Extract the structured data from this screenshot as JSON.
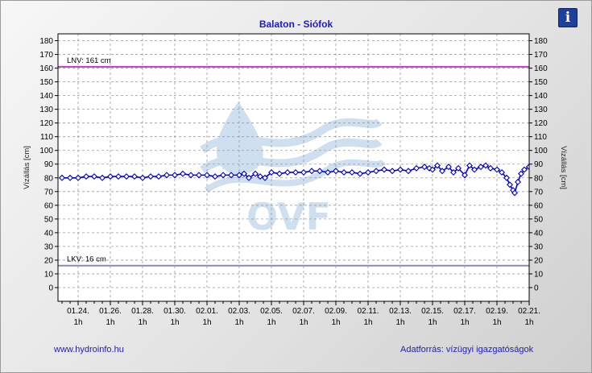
{
  "title": "Balaton - Siófok",
  "info_icon": "info-icon",
  "info_glyph": "i",
  "footer": {
    "left": "www.hydroinfo.hu",
    "right": "Adatforrás: vízügyi igazgatóságok"
  },
  "watermark": {
    "text": "OVF",
    "color": "#c9dcef"
  },
  "chart_data": {
    "type": "line",
    "ylabel_left": "Vízállás [cm]",
    "ylabel_right": "Vízállás [cm]",
    "ylim": [
      -10,
      185
    ],
    "yticks": [
      0,
      10,
      20,
      30,
      40,
      50,
      60,
      70,
      80,
      90,
      100,
      110,
      120,
      130,
      140,
      150,
      160,
      170,
      180
    ],
    "xlim": [
      0,
      29
    ],
    "xticks": [
      {
        "x": 1,
        "date": "01.24.",
        "hour": "1h"
      },
      {
        "x": 3,
        "date": "01.26.",
        "hour": "1h"
      },
      {
        "x": 5,
        "date": "01.28.",
        "hour": "1h"
      },
      {
        "x": 7,
        "date": "01.30.",
        "hour": "1h"
      },
      {
        "x": 9,
        "date": "02.01.",
        "hour": "1h"
      },
      {
        "x": 11,
        "date": "02.03.",
        "hour": "1h"
      },
      {
        "x": 13,
        "date": "02.05.",
        "hour": "1h"
      },
      {
        "x": 15,
        "date": "02.07.",
        "hour": "1h"
      },
      {
        "x": 17,
        "date": "02.09.",
        "hour": "1h"
      },
      {
        "x": 19,
        "date": "02.11.",
        "hour": "1h"
      },
      {
        "x": 21,
        "date": "02.13.",
        "hour": "1h"
      },
      {
        "x": 23,
        "date": "02.15.",
        "hour": "1h"
      },
      {
        "x": 25,
        "date": "02.17.",
        "hour": "1h"
      },
      {
        "x": 27,
        "date": "02.19.",
        "hour": "1h"
      },
      {
        "x": 29,
        "date": "02.21.",
        "hour": "1h"
      }
    ],
    "grid": true,
    "reference_lines": [
      {
        "label": "LNV: 161 cm",
        "value": 161,
        "color": "#c040c0"
      },
      {
        "label": "LKV: 16 cm",
        "value": 16,
        "color": "#8a8ab8"
      }
    ],
    "series": [
      {
        "color": "#0000c8",
        "marker": "diamond",
        "points": [
          [
            0,
            80
          ],
          [
            0.5,
            80
          ],
          [
            1,
            80
          ],
          [
            1.5,
            81
          ],
          [
            2,
            81
          ],
          [
            2.5,
            80
          ],
          [
            3,
            81
          ],
          [
            3.5,
            81
          ],
          [
            4,
            81
          ],
          [
            4.5,
            81
          ],
          [
            5,
            80
          ],
          [
            5.5,
            81
          ],
          [
            6,
            81
          ],
          [
            6.5,
            82
          ],
          [
            7,
            82
          ],
          [
            7.5,
            83
          ],
          [
            8,
            82
          ],
          [
            8.5,
            82
          ],
          [
            9,
            82
          ],
          [
            9.5,
            81
          ],
          [
            10,
            82
          ],
          [
            10.5,
            82
          ],
          [
            11,
            82
          ],
          [
            11.3,
            83
          ],
          [
            11.6,
            80
          ],
          [
            12,
            83
          ],
          [
            12.3,
            81
          ],
          [
            12.6,
            80
          ],
          [
            13,
            84
          ],
          [
            13.5,
            83
          ],
          [
            14,
            84
          ],
          [
            14.5,
            84
          ],
          [
            15,
            84
          ],
          [
            15.5,
            85
          ],
          [
            16,
            85
          ],
          [
            16.5,
            84
          ],
          [
            17,
            85
          ],
          [
            17.5,
            84
          ],
          [
            18,
            84
          ],
          [
            18.5,
            83
          ],
          [
            19,
            84
          ],
          [
            19.5,
            85
          ],
          [
            20,
            86
          ],
          [
            20.5,
            85
          ],
          [
            21,
            86
          ],
          [
            21.5,
            85
          ],
          [
            22,
            87
          ],
          [
            22.5,
            88
          ],
          [
            22.8,
            87
          ],
          [
            23,
            86
          ],
          [
            23.3,
            89
          ],
          [
            23.6,
            85
          ],
          [
            24,
            88
          ],
          [
            24.3,
            84
          ],
          [
            24.6,
            87
          ],
          [
            25,
            82
          ],
          [
            25.3,
            89
          ],
          [
            25.6,
            86
          ],
          [
            26,
            88
          ],
          [
            26.3,
            89
          ],
          [
            26.6,
            87
          ],
          [
            27,
            86
          ],
          [
            27.3,
            84
          ],
          [
            27.6,
            80
          ],
          [
            27.8,
            75
          ],
          [
            28,
            71
          ],
          [
            28.1,
            69
          ],
          [
            28.3,
            77
          ],
          [
            28.5,
            83
          ],
          [
            28.7,
            86
          ],
          [
            29,
            88
          ]
        ]
      }
    ]
  }
}
